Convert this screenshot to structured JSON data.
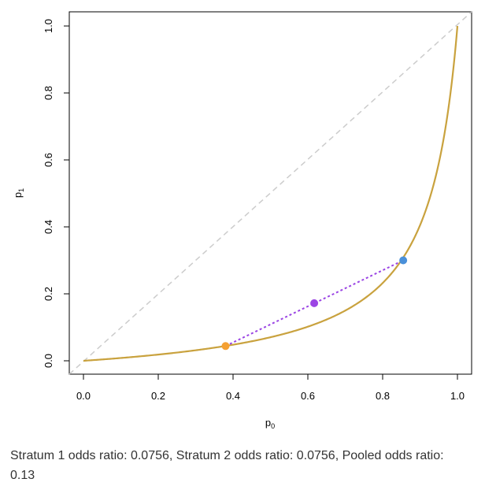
{
  "chart_data": {
    "type": "line",
    "xlabel": "p",
    "xlabel_sub": "0",
    "ylabel": "p",
    "ylabel_sub": "1",
    "xlim": [
      0,
      1
    ],
    "ylim": [
      0,
      1
    ],
    "x_ticks": [
      "0.0",
      "0.2",
      "0.4",
      "0.6",
      "0.8",
      "1.0"
    ],
    "y_ticks": [
      "0.0",
      "0.2",
      "0.4",
      "0.6",
      "0.8",
      "1.0"
    ],
    "grid": false,
    "reference_line": {
      "x": [
        0,
        1
      ],
      "y": [
        0,
        1
      ],
      "style": "dashed",
      "color": "#cccccc"
    },
    "curve": {
      "odds_ratio": 0.0756,
      "color": "#c9a23e"
    },
    "connector": {
      "from": [
        0.38,
        0.044
      ],
      "to": [
        0.855,
        0.3
      ],
      "style": "dotted",
      "color": "#9b45e4"
    },
    "points": [
      {
        "name": "stratum-1",
        "x": 0.38,
        "y": 0.044,
        "color": "#f5a032"
      },
      {
        "name": "pooled",
        "x": 0.617,
        "y": 0.172,
        "color": "#9b45e4"
      },
      {
        "name": "stratum-2",
        "x": 0.855,
        "y": 0.3,
        "color": "#4a90d9"
      }
    ]
  },
  "caption": "Stratum 1 odds ratio: 0.0756, Stratum 2 odds ratio: 0.0756, Pooled odds ratio: 0.13"
}
